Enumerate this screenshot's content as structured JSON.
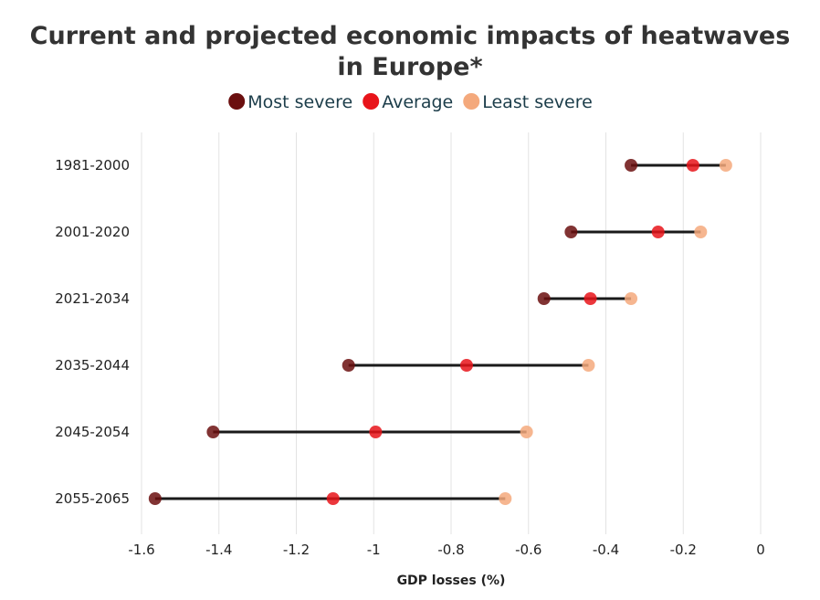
{
  "chart_data": {
    "type": "dumbbell",
    "title": "Current and projected economic impacts of heatwaves in Europe*",
    "title_lines": [
      "Current and projected economic impacts of heatwaves",
      "in Europe*"
    ],
    "xlabel": "GDP losses (%)",
    "ylabel": "",
    "xlim": [
      -1.6,
      0
    ],
    "x_ticks": [
      -1.6,
      -1.4,
      -1.2,
      -1,
      -0.8,
      -0.6,
      -0.4,
      -0.2,
      0
    ],
    "x_tick_labels": [
      "-1.6",
      "-1.4",
      "-1.2",
      "-1",
      "-0.8",
      "-0.6",
      "-0.4",
      "-0.2",
      "0"
    ],
    "grid": "vertical",
    "legend_position": "top-center",
    "categories": [
      "1981-2000",
      "2001-2020",
      "2021-2034",
      "2035-2044",
      "2045-2054",
      "2055-2065"
    ],
    "series": [
      {
        "name": "Most severe",
        "color": "#6b0f0f",
        "values": [
          -0.335,
          -0.49,
          -0.56,
          -1.065,
          -1.415,
          -1.565
        ]
      },
      {
        "name": "Average",
        "color": "#e8141a",
        "values": [
          -0.175,
          -0.265,
          -0.44,
          -0.76,
          -0.995,
          -1.105
        ]
      },
      {
        "name": "Least severe",
        "color": "#f4a97c",
        "values": [
          -0.09,
          -0.155,
          -0.335,
          -0.445,
          -0.605,
          -0.66
        ]
      }
    ]
  }
}
